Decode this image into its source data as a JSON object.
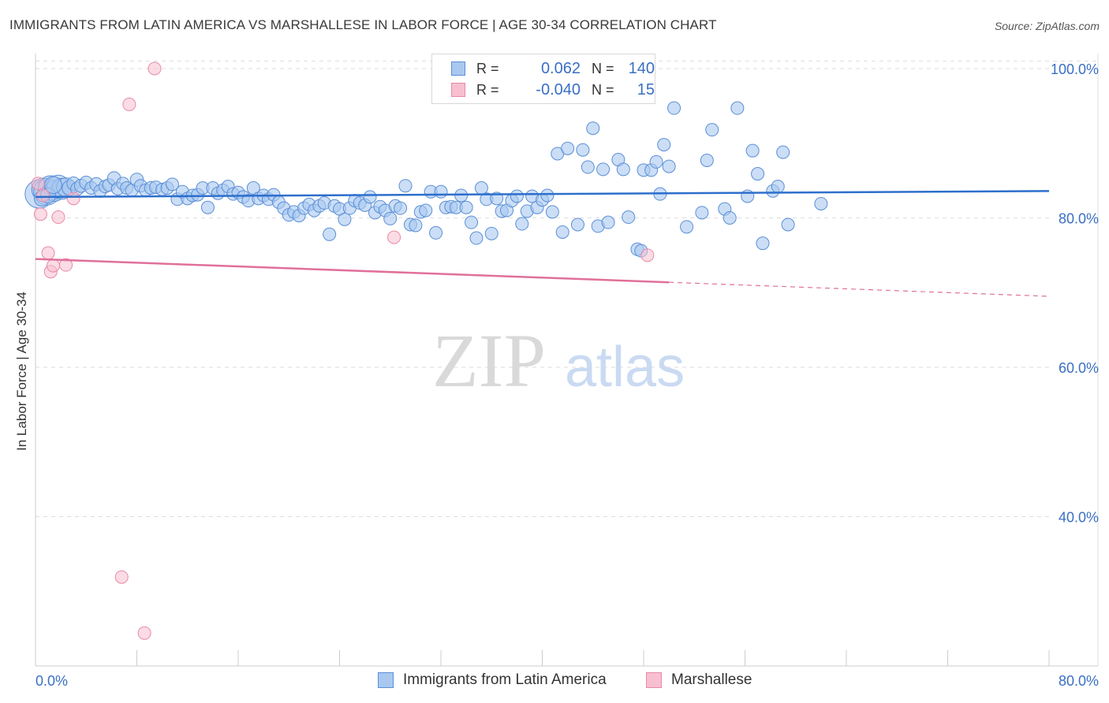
{
  "header": {
    "title": "IMMIGRANTS FROM LATIN AMERICA VS MARSHALLESE IN LABOR FORCE | AGE 30-34 CORRELATION CHART",
    "source": "Source: ZipAtlas.com"
  },
  "watermark": {
    "zip": "ZIP",
    "atlas": "atlas"
  },
  "legend": {
    "rows": [
      {
        "r_label": "R =",
        "r_value": "0.062",
        "n_label": "N =",
        "n_value": "140"
      },
      {
        "r_label": "R =",
        "r_value": "-0.040",
        "n_label": "N =",
        "n_value": "15"
      }
    ]
  },
  "bottom_legend": {
    "series1": "Immigrants from Latin America",
    "series2": "Marshallese"
  },
  "colors": {
    "blue_fill": "#a9c8f0",
    "blue_stroke": "#5b8fd6",
    "blue_line": "#2d6fcc",
    "pink_fill": "#f7bfd0",
    "pink_stroke": "#e88aa8",
    "pink_line": "#e0709a",
    "tick_text": "#3a6fc4",
    "grid": "#dddddd"
  },
  "chart_data": {
    "type": "scatter",
    "title": "IMMIGRANTS FROM LATIN AMERICA VS MARSHALLESE IN LABOR FORCE | AGE 30-34 CORRELATION CHART",
    "xlabel": "",
    "ylabel": "In Labor Force | Age 30-34",
    "xlim": [
      0,
      80
    ],
    "ylim": [
      20,
      102
    ],
    "x_ticks": [
      "0.0%",
      "80.0%"
    ],
    "y_ticks": [
      {
        "value": 100,
        "label": "100.0%"
      },
      {
        "value": 80,
        "label": "80.0%"
      },
      {
        "value": 60,
        "label": "60.0%"
      },
      {
        "value": 40,
        "label": "40.0%"
      }
    ],
    "grid": true,
    "legend_placement": "top-center",
    "series": [
      {
        "name": "Immigrants from Latin America",
        "R": 0.062,
        "N": 140,
        "trend": {
          "x": [
            0,
            80
          ],
          "y": [
            82.8,
            83.6
          ]
        },
        "points": [
          [
            0.3,
            83.2,
            1.6
          ],
          [
            0.6,
            83.8,
            1.3
          ],
          [
            0.9,
            83.5,
            1.5
          ],
          [
            1.2,
            84.0,
            1.4
          ],
          [
            1.5,
            83.6,
            1.2
          ],
          [
            1.8,
            84.2,
            1.3
          ],
          [
            2.1,
            83.9,
            1.2
          ],
          [
            2.4,
            84.1,
            1.1
          ],
          [
            0.5,
            82.6,
            0.9
          ],
          [
            1.0,
            83.0,
            0.9
          ],
          [
            1.4,
            84.4,
            1.0
          ],
          [
            2.7,
            84.0,
            0.9
          ],
          [
            3.0,
            84.6,
            0.8
          ],
          [
            3.3,
            83.9,
            0.8
          ],
          [
            3.6,
            84.3,
            0.8
          ],
          [
            4.0,
            84.7,
            0.8
          ],
          [
            4.4,
            84.0,
            0.7
          ],
          [
            4.8,
            84.5,
            0.8
          ],
          [
            5.1,
            83.6,
            0.7
          ],
          [
            5.5,
            84.2,
            0.7
          ],
          [
            5.8,
            84.4,
            0.7
          ],
          [
            6.2,
            85.3,
            0.8
          ],
          [
            6.5,
            83.9,
            0.7
          ],
          [
            6.9,
            84.6,
            0.7
          ],
          [
            7.2,
            84.0,
            0.7
          ],
          [
            7.6,
            83.7,
            0.7
          ],
          [
            8.0,
            85.1,
            0.8
          ],
          [
            8.3,
            84.3,
            0.7
          ],
          [
            8.7,
            83.7,
            0.7
          ],
          [
            9.1,
            84.0,
            0.7
          ],
          [
            9.5,
            84.1,
            0.7
          ],
          [
            10.0,
            83.8,
            0.7
          ],
          [
            10.4,
            84.0,
            0.7
          ],
          [
            10.8,
            84.5,
            0.7
          ],
          [
            11.2,
            82.5,
            0.7
          ],
          [
            11.6,
            83.5,
            0.7
          ],
          [
            12.0,
            82.6,
            0.6
          ],
          [
            12.4,
            83.0,
            0.6
          ],
          [
            12.8,
            83.1,
            0.6
          ],
          [
            13.2,
            84.0,
            0.6
          ],
          [
            13.6,
            81.4,
            0.6
          ],
          [
            14.0,
            84.0,
            0.6
          ],
          [
            14.4,
            83.3,
            0.6
          ],
          [
            14.8,
            83.7,
            0.6
          ],
          [
            15.2,
            84.2,
            0.6
          ],
          [
            15.6,
            83.2,
            0.6
          ],
          [
            16.0,
            83.4,
            0.6
          ],
          [
            16.4,
            82.8,
            0.6
          ],
          [
            16.8,
            82.3,
            0.6
          ],
          [
            17.2,
            84.0,
            0.6
          ],
          [
            17.6,
            82.6,
            0.6
          ],
          [
            18.0,
            83.0,
            0.6
          ],
          [
            18.4,
            82.5,
            0.6
          ],
          [
            18.8,
            83.1,
            0.6
          ],
          [
            19.2,
            82.1,
            0.6
          ],
          [
            19.6,
            81.3,
            0.6
          ],
          [
            20.0,
            80.4,
            0.6
          ],
          [
            20.4,
            80.8,
            0.6
          ],
          [
            20.8,
            80.3,
            0.6
          ],
          [
            21.2,
            81.3,
            0.6
          ],
          [
            21.6,
            81.8,
            0.6
          ],
          [
            22.0,
            81.0,
            0.6
          ],
          [
            22.4,
            81.6,
            0.6
          ],
          [
            22.8,
            82.0,
            0.6
          ],
          [
            23.2,
            77.8,
            0.6
          ],
          [
            23.6,
            81.6,
            0.6
          ],
          [
            24.0,
            81.2,
            0.6
          ],
          [
            24.4,
            79.8,
            0.6
          ],
          [
            24.8,
            81.3,
            0.6
          ],
          [
            25.2,
            82.3,
            0.6
          ],
          [
            25.6,
            82.0,
            0.6
          ],
          [
            26.0,
            81.7,
            0.6
          ],
          [
            26.4,
            82.8,
            0.6
          ],
          [
            26.8,
            80.7,
            0.6
          ],
          [
            27.2,
            81.5,
            0.6
          ],
          [
            27.6,
            81.0,
            0.6
          ],
          [
            28.0,
            79.9,
            0.6
          ],
          [
            28.4,
            81.6,
            0.6
          ],
          [
            28.8,
            81.3,
            0.6
          ],
          [
            29.2,
            84.3,
            0.6
          ],
          [
            29.6,
            79.1,
            0.6
          ],
          [
            30.0,
            79.0,
            0.6
          ],
          [
            30.4,
            80.8,
            0.6
          ],
          [
            30.8,
            81.0,
            0.6
          ],
          [
            31.2,
            83.5,
            0.6
          ],
          [
            31.6,
            78.0,
            0.6
          ],
          [
            32.0,
            83.5,
            0.6
          ],
          [
            32.4,
            81.4,
            0.6
          ],
          [
            32.8,
            81.5,
            0.6
          ],
          [
            33.2,
            81.4,
            0.6
          ],
          [
            33.6,
            83.0,
            0.6
          ],
          [
            34.0,
            81.4,
            0.6
          ],
          [
            34.4,
            79.4,
            0.6
          ],
          [
            34.8,
            77.3,
            0.6
          ],
          [
            35.2,
            84.0,
            0.6
          ],
          [
            35.6,
            82.5,
            0.6
          ],
          [
            36.0,
            77.9,
            0.6
          ],
          [
            36.4,
            82.6,
            0.6
          ],
          [
            36.8,
            80.9,
            0.6
          ],
          [
            37.2,
            81.0,
            0.6
          ],
          [
            37.6,
            82.3,
            0.6
          ],
          [
            38.0,
            82.9,
            0.6
          ],
          [
            38.4,
            79.2,
            0.6
          ],
          [
            38.8,
            80.9,
            0.6
          ],
          [
            39.2,
            82.9,
            0.6
          ],
          [
            39.6,
            81.4,
            0.6
          ],
          [
            40.0,
            82.4,
            0.6
          ],
          [
            40.4,
            83.0,
            0.6
          ],
          [
            40.8,
            80.8,
            0.6
          ],
          [
            41.2,
            88.6,
            0.6
          ],
          [
            41.6,
            78.1,
            0.6
          ],
          [
            42.0,
            89.3,
            0.6
          ],
          [
            42.8,
            79.1,
            0.6
          ],
          [
            43.2,
            89.1,
            0.6
          ],
          [
            43.6,
            86.8,
            0.6
          ],
          [
            44.0,
            92.0,
            0.6
          ],
          [
            44.4,
            78.9,
            0.6
          ],
          [
            44.8,
            86.5,
            0.6
          ],
          [
            45.2,
            79.4,
            0.6
          ],
          [
            46.0,
            87.8,
            0.6
          ],
          [
            46.4,
            86.5,
            0.6
          ],
          [
            46.8,
            80.1,
            0.6
          ],
          [
            47.5,
            75.8,
            0.6
          ],
          [
            47.8,
            75.6,
            0.6
          ],
          [
            48.0,
            86.4,
            0.6
          ],
          [
            48.6,
            86.4,
            0.6
          ],
          [
            49.0,
            87.5,
            0.6
          ],
          [
            49.3,
            83.2,
            0.6
          ],
          [
            49.6,
            89.8,
            0.6
          ],
          [
            50.0,
            86.9,
            0.6
          ],
          [
            50.4,
            94.7,
            0.6
          ],
          [
            51.4,
            78.8,
            0.6
          ],
          [
            52.6,
            80.7,
            0.6
          ],
          [
            53.0,
            87.7,
            0.6
          ],
          [
            53.4,
            91.8,
            0.6
          ],
          [
            54.4,
            81.2,
            0.6
          ],
          [
            54.8,
            80.0,
            0.6
          ],
          [
            55.4,
            94.7,
            0.6
          ],
          [
            56.2,
            82.9,
            0.6
          ],
          [
            56.6,
            89.0,
            0.6
          ],
          [
            57.0,
            85.9,
            0.6
          ],
          [
            57.4,
            76.6,
            0.6
          ],
          [
            58.2,
            83.6,
            0.6
          ],
          [
            58.6,
            84.2,
            0.6
          ],
          [
            59.0,
            88.8,
            0.6
          ],
          [
            59.4,
            79.1,
            0.6
          ],
          [
            62.0,
            81.9,
            0.6
          ]
        ]
      },
      {
        "name": "Marshallese",
        "R": -0.04,
        "N": 15,
        "trend": {
          "x": [
            0,
            80
          ],
          "y": [
            74.5,
            69.5
          ],
          "solid_until_x": 50
        },
        "points": [
          [
            0.2,
            84.6
          ],
          [
            0.4,
            80.5
          ],
          [
            0.6,
            83.0
          ],
          [
            1.0,
            75.3
          ],
          [
            1.2,
            72.8
          ],
          [
            1.4,
            73.6
          ],
          [
            1.8,
            80.1
          ],
          [
            2.4,
            73.7
          ],
          [
            3.0,
            82.6
          ],
          [
            6.8,
            31.9
          ],
          [
            7.4,
            95.2
          ],
          [
            8.6,
            24.4
          ],
          [
            9.4,
            100.0
          ],
          [
            28.3,
            77.4
          ],
          [
            48.3,
            75.0
          ]
        ]
      }
    ]
  }
}
